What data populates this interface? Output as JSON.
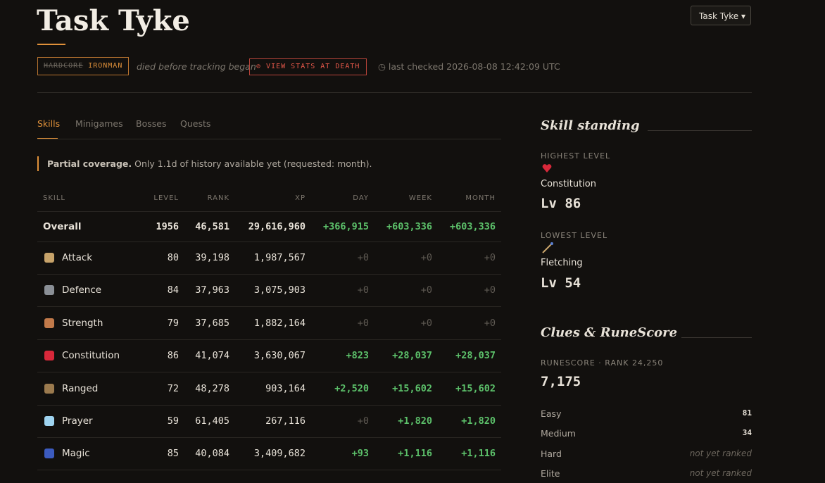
{
  "header": {
    "title": "Task Tyke",
    "select": "Task Tyke",
    "badge_struck": "HARDCORE",
    "badge": "IRONMAN",
    "status": "died before tracking began",
    "death_button": "VIEW STATS AT DEATH",
    "last_checked": "last checked 2026-08-08 12:42:09 UTC"
  },
  "tabs": [
    "Skills",
    "Minigames",
    "Bosses",
    "Quests"
  ],
  "notice": {
    "strong": "Partial coverage.",
    "text": "Only 1.1d of history available yet (requested: month)."
  },
  "table": {
    "columns": [
      "SKILL",
      "LEVEL",
      "RANK",
      "XP",
      "DAY",
      "WEEK",
      "MONTH"
    ],
    "rows": [
      [
        "Overall",
        "1956",
        "46,581",
        "29,616,960",
        "+366,915",
        "+603,336",
        "+603,336"
      ],
      [
        "Attack",
        "80",
        "39,198",
        "1,987,567",
        "+0",
        "+0",
        "+0"
      ],
      [
        "Defence",
        "84",
        "37,963",
        "3,075,903",
        "+0",
        "+0",
        "+0"
      ],
      [
        "Strength",
        "79",
        "37,685",
        "1,882,164",
        "+0",
        "+0",
        "+0"
      ],
      [
        "Constitution",
        "86",
        "41,074",
        "3,630,067",
        "+823",
        "+28,037",
        "+28,037"
      ],
      [
        "Ranged",
        "72",
        "48,278",
        "903,164",
        "+2,520",
        "+15,602",
        "+15,602"
      ],
      [
        "Prayer",
        "59",
        "61,405",
        "267,116",
        "+0",
        "+1,820",
        "+1,820"
      ],
      [
        "Magic",
        "85",
        "40,084",
        "3,409,682",
        "+93",
        "+1,116",
        "+1,116"
      ]
    ]
  },
  "standing": {
    "title": "Skill standing",
    "highest": {
      "label": "HIGHEST LEVEL",
      "skill": "Constitution",
      "level": "Lv 86"
    },
    "lowest": {
      "label": "LOWEST LEVEL",
      "skill": "Fletching",
      "level": "Lv 54"
    }
  },
  "clues": {
    "title": "Clues & RuneScore",
    "runescore_label": "RUNESCORE · RANK 24,250",
    "runescore": "7,175",
    "rows": [
      [
        "Easy",
        "81"
      ],
      [
        "Medium",
        "34"
      ],
      [
        "Hard",
        "not yet ranked"
      ],
      [
        "Elite",
        "not yet ranked"
      ]
    ]
  }
}
